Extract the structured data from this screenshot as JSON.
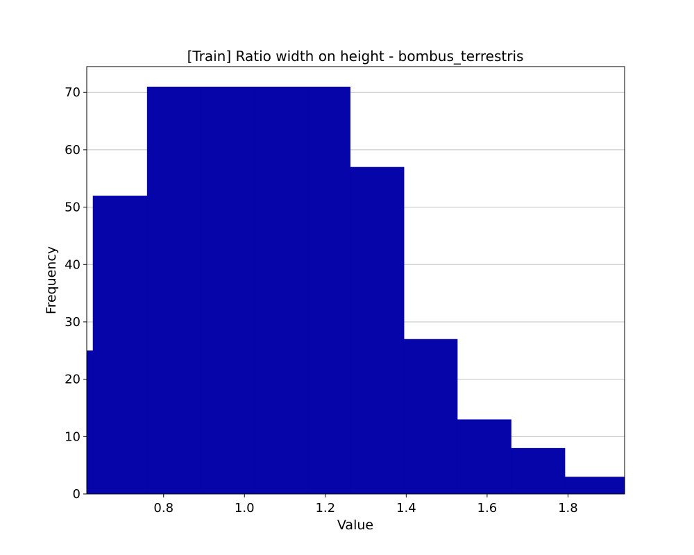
{
  "chart_data": {
    "type": "bar",
    "title": "[Train] Ratio width on height - bombus_terrestris",
    "xlabel": "Value",
    "ylabel": "Frequency",
    "xlim": [
      0.61,
      1.94
    ],
    "ylim": [
      0,
      74.5
    ],
    "grid": "y-axis only",
    "bins": [
      {
        "x0": 0.49,
        "x1": 0.625,
        "value": 25
      },
      {
        "x0": 0.625,
        "x1": 0.759,
        "value": 52
      },
      {
        "x0": 0.759,
        "x1": 0.892,
        "value": 71
      },
      {
        "x0": 0.892,
        "x1": 1.025,
        "value": 71
      },
      {
        "x0": 1.025,
        "x1": 1.159,
        "value": 71
      },
      {
        "x0": 1.159,
        "x1": 1.261,
        "value": 71
      },
      {
        "x0": 1.261,
        "x1": 1.394,
        "value": 57
      },
      {
        "x0": 1.394,
        "x1": 1.526,
        "value": 27
      },
      {
        "x0": 1.526,
        "x1": 1.659,
        "value": 13
      },
      {
        "x0": 1.659,
        "x1": 1.792,
        "value": 8
      },
      {
        "x0": 1.792,
        "x1": 1.94,
        "value": 3
      }
    ],
    "xticks": [
      {
        "value": 0.8,
        "label": "0.8"
      },
      {
        "value": 1.0,
        "label": "1.0"
      },
      {
        "value": 1.2,
        "label": "1.2"
      },
      {
        "value": 1.4,
        "label": "1.4"
      },
      {
        "value": 1.6,
        "label": "1.6"
      },
      {
        "value": 1.8,
        "label": "1.8"
      }
    ],
    "yticks": [
      {
        "value": 0,
        "label": "0"
      },
      {
        "value": 10,
        "label": "10"
      },
      {
        "value": 20,
        "label": "20"
      },
      {
        "value": 30,
        "label": "30"
      },
      {
        "value": 40,
        "label": "40"
      },
      {
        "value": 50,
        "label": "50"
      },
      {
        "value": 60,
        "label": "60"
      },
      {
        "value": 70,
        "label": "70"
      }
    ],
    "colors": {
      "bar": "#0505aa",
      "grid": "#c0c0c0",
      "axis": "#000000"
    }
  }
}
